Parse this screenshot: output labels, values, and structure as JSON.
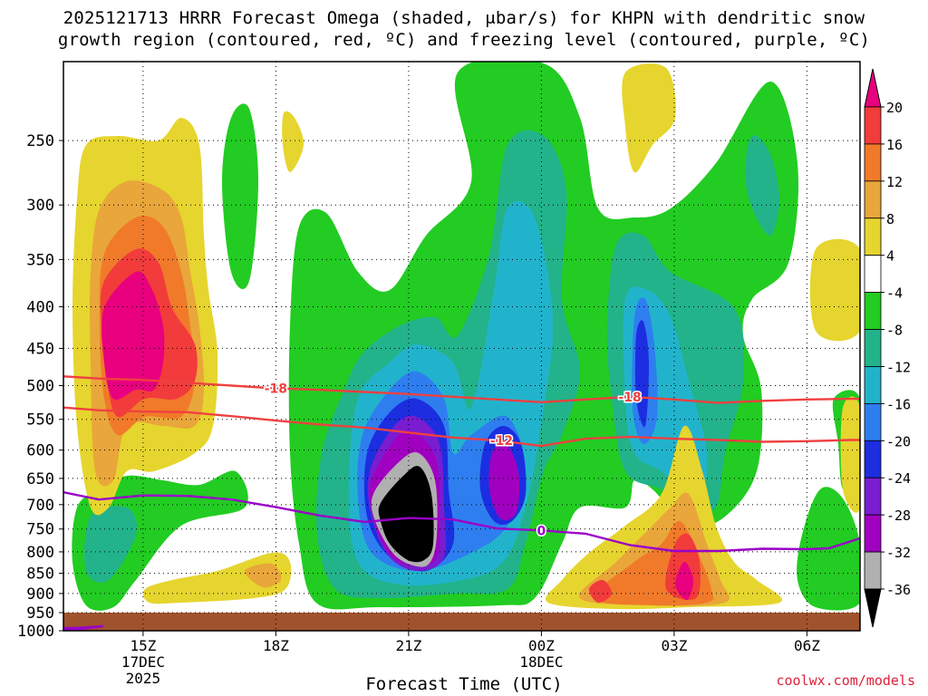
{
  "title_line1": "2025121713 HRRR Forecast Omega (shaded, μbar/s) for KHPN with dendritic snow",
  "title_line2": "growth region (contoured, red, ºC) and freezing level (contoured, purple, ºC)",
  "x_axis_title": "Forecast Time (UTC)",
  "credit": "coolwx.com/models",
  "chart_data": {
    "type": "time-height contour",
    "y_axis": {
      "scale": "log-pressure",
      "inverted": true,
      "range": [
        1000,
        200
      ],
      "ticks": [
        250,
        300,
        350,
        400,
        450,
        500,
        550,
        600,
        650,
        700,
        750,
        800,
        850,
        900,
        950,
        1000
      ]
    },
    "x_axis": {
      "range_hours": [
        13.2,
        7.2
      ],
      "ticks": [
        {
          "hour": 15,
          "label": "15Z",
          "date": "17DEC",
          "year": "2025"
        },
        {
          "hour": 18,
          "label": "18Z"
        },
        {
          "hour": 21,
          "label": "21Z"
        },
        {
          "hour": 24,
          "label": "00Z",
          "date": "18DEC"
        },
        {
          "hour": 27,
          "label": "03Z"
        },
        {
          "hour": 30,
          "label": "06Z"
        }
      ]
    },
    "colorbar": {
      "levels": [
        20,
        16,
        12,
        8,
        4,
        -4,
        -8,
        -12,
        -16,
        -20,
        -24,
        -28,
        -32,
        -36
      ],
      "colors": [
        "#e8007e",
        "#f23b3b",
        "#f07a2a",
        "#e9a63a",
        "#e6d52e",
        "#ffffff",
        "#22cc22",
        "#22b38a",
        "#22b3cc",
        "#2e7ef0",
        "#1c2ee0",
        "#7a1cd0",
        "#a000c0",
        "#b0b0b0",
        "#000000"
      ]
    },
    "omega_features": [
      {
        "t": 14.3,
        "p": 430,
        "value": 20
      },
      {
        "t": 21.0,
        "p": 710,
        "value": -38
      },
      {
        "t": 22.9,
        "p": 690,
        "value": -28
      },
      {
        "t": 25.9,
        "p": 540,
        "value": -20
      },
      {
        "t": 27.0,
        "p": 910,
        "value": 16
      },
      {
        "t": 17.5,
        "p": 900,
        "value": 4
      }
    ],
    "series": [
      {
        "name": "-18",
        "color": "#f04040",
        "contour_label_at": [
          18.0,
          26.0
        ],
        "points": [
          [
            13.2,
            487
          ],
          [
            14,
            490
          ],
          [
            15,
            492
          ],
          [
            16,
            496
          ],
          [
            17,
            500
          ],
          [
            18,
            504
          ],
          [
            19,
            506
          ],
          [
            20,
            509
          ],
          [
            21,
            512
          ],
          [
            22,
            516
          ],
          [
            23,
            520
          ],
          [
            24,
            524
          ],
          [
            25,
            520
          ],
          [
            26,
            516
          ],
          [
            27,
            520
          ],
          [
            28,
            525
          ],
          [
            29,
            522
          ],
          [
            30,
            520
          ],
          [
            31,
            519
          ],
          [
            31.2,
            519
          ]
        ]
      },
      {
        "name": "-12",
        "color": "#f04040",
        "contour_label_at": [
          23.1
        ],
        "points": [
          [
            13.2,
            532
          ],
          [
            14,
            536
          ],
          [
            15,
            538
          ],
          [
            16,
            539
          ],
          [
            17,
            545
          ],
          [
            18,
            552
          ],
          [
            19,
            558
          ],
          [
            20,
            563
          ],
          [
            21,
            571
          ],
          [
            22,
            579
          ],
          [
            23,
            584
          ],
          [
            24,
            593
          ],
          [
            25,
            581
          ],
          [
            26,
            578
          ],
          [
            27,
            581
          ],
          [
            28,
            583
          ],
          [
            29,
            586
          ],
          [
            30,
            585
          ],
          [
            31,
            583
          ],
          [
            31.2,
            583
          ]
        ]
      },
      {
        "name": "0",
        "color": "#9a00c8",
        "contour_label_at": [
          24.0
        ],
        "points": [
          [
            13.2,
            676
          ],
          [
            14,
            690
          ],
          [
            15,
            682
          ],
          [
            16,
            683
          ],
          [
            17,
            690
          ],
          [
            18,
            705
          ],
          [
            19,
            722
          ],
          [
            20,
            735
          ],
          [
            21,
            727
          ],
          [
            22,
            730
          ],
          [
            23,
            749
          ],
          [
            24,
            753
          ],
          [
            25,
            760
          ],
          [
            26,
            785
          ],
          [
            27,
            798
          ],
          [
            28,
            798
          ],
          [
            29,
            793
          ],
          [
            30,
            794
          ],
          [
            30.5,
            792
          ],
          [
            31.2,
            770
          ]
        ]
      },
      {
        "name": "0",
        "color": "#9a00c8",
        "contour_label_at": [],
        "points": [
          [
            13.2,
            992
          ],
          [
            13.5,
            992
          ],
          [
            14.1,
            987
          ],
          [
            13.6,
            995
          ],
          [
            13.2,
            997
          ]
        ]
      }
    ]
  }
}
